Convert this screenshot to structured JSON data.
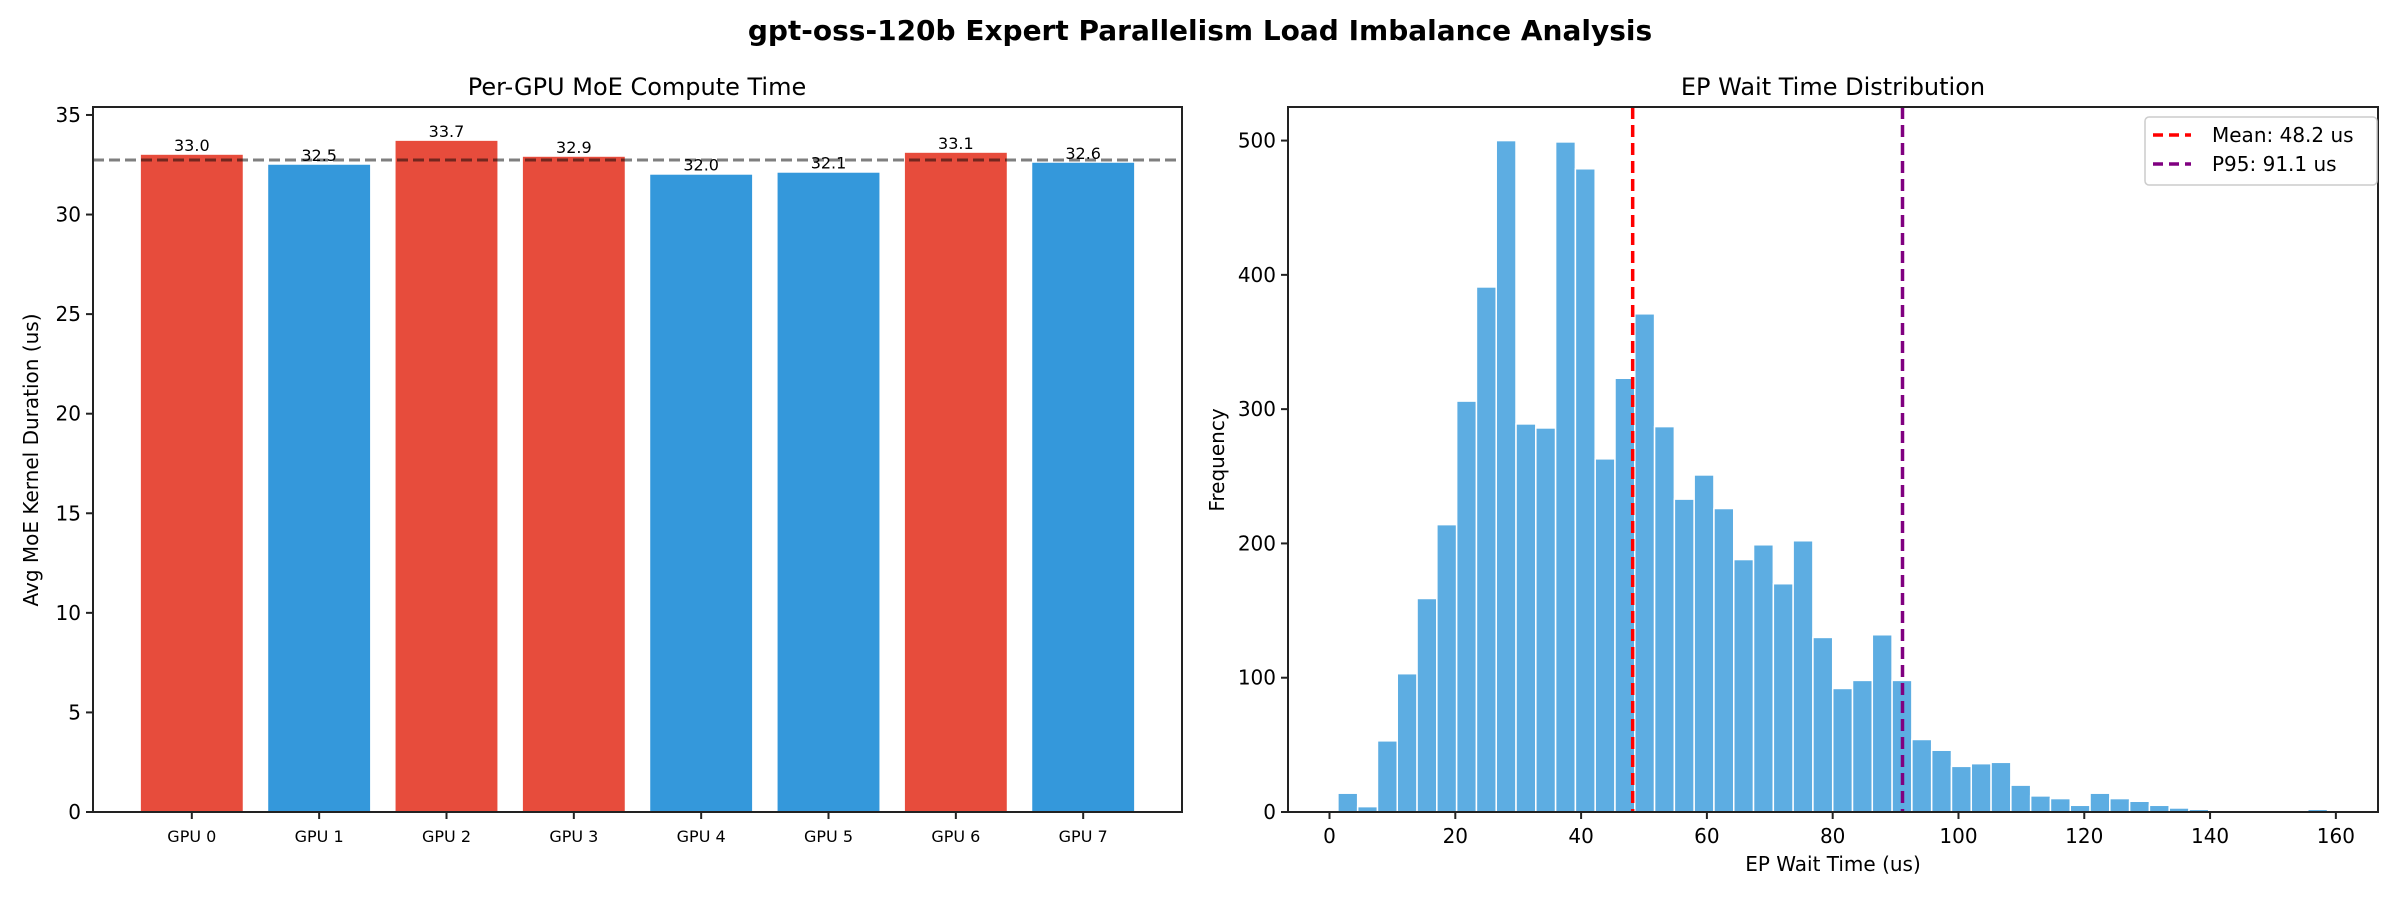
{
  "figure": {
    "suptitle": "gpt-oss-120b Expert Parallelism Load Imbalance Analysis"
  },
  "chart_data": [
    {
      "type": "bar",
      "title": "Per-GPU MoE Compute Time",
      "xlabel": "",
      "ylabel": "Avg MoE Kernel Duration (us)",
      "categories": [
        "GPU 0",
        "GPU 1",
        "GPU 2",
        "GPU 3",
        "GPU 4",
        "GPU 5",
        "GPU 6",
        "GPU 7"
      ],
      "values": [
        33.0,
        32.5,
        33.7,
        32.9,
        32.0,
        32.1,
        33.1,
        32.6
      ],
      "value_labels": [
        "33.0",
        "32.5",
        "33.7",
        "32.9",
        "32.0",
        "32.1",
        "33.1",
        "32.6"
      ],
      "mean_line": 32.74,
      "ylim": [
        0,
        35.4
      ],
      "yticks": [
        0,
        5,
        10,
        15,
        20,
        25,
        30,
        35
      ],
      "colors": {
        "above_mean": "#e74c3c",
        "below_mean": "#3498db",
        "mean_line": "#808080"
      },
      "grid": false
    },
    {
      "type": "bar",
      "subtype": "histogram",
      "title": "EP Wait Time Distribution",
      "xlabel": "EP Wait Time (us)",
      "ylabel": "Frequency",
      "bin_start": 1.33,
      "bin_width": 3.147,
      "counts": [
        14,
        4,
        53,
        103,
        159,
        214,
        306,
        391,
        500,
        289,
        286,
        499,
        479,
        263,
        323,
        371,
        287,
        233,
        251,
        226,
        188,
        199,
        170,
        202,
        130,
        92,
        98,
        132,
        98,
        54,
        46,
        34,
        36,
        37,
        20,
        12,
        10,
        5,
        14,
        10,
        8,
        5,
        3,
        2,
        1,
        0,
        1,
        0,
        0,
        2
      ],
      "xlim": [
        -6.6,
        166.7
      ],
      "ylim": [
        0,
        525
      ],
      "xticks": [
        0,
        20,
        40,
        60,
        80,
        100,
        120,
        140,
        160
      ],
      "yticks": [
        0,
        100,
        200,
        300,
        400,
        500
      ],
      "bar_color": "#5dade2",
      "vlines": [
        {
          "label": "Mean: 48.2 us",
          "x": 48.2,
          "color": "#ff0000"
        },
        {
          "label": "P95: 91.1 us",
          "x": 91.1,
          "color": "#800080"
        }
      ],
      "legend_position": "top-right",
      "grid": false
    }
  ]
}
